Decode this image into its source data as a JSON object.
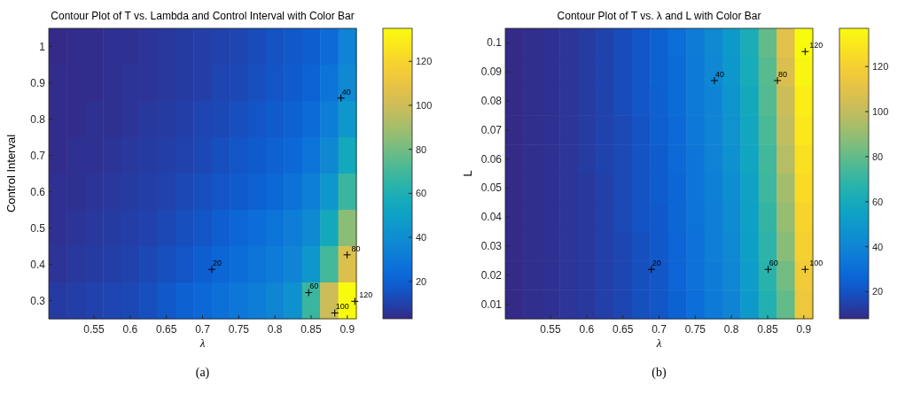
{
  "chart_data": [
    {
      "type": "heatmap",
      "title": "Contour Plot of T vs. Lambda and Control Interval with Color Bar",
      "xlabel": "λ",
      "ylabel": "Control Interval",
      "categories": [
        null,
        null,
        "0.55",
        null,
        "0.6",
        null,
        "0.65",
        null,
        "0.7",
        null,
        "0.75",
        null,
        "0.8",
        null,
        "0.85",
        null,
        "0.9"
      ],
      "y_categories": [
        "1",
        "0.9",
        "0.8",
        "0.7",
        "0.6",
        "0.5",
        "0.4",
        "0.3"
      ],
      "cells": [
        [
          3,
          4,
          4,
          5,
          5,
          6,
          7,
          8,
          9,
          10,
          11,
          13,
          15,
          17,
          19,
          24,
          35
        ],
        [
          4,
          4,
          4,
          5,
          6,
          6,
          7,
          8,
          9,
          11,
          12,
          14,
          16,
          18,
          21,
          28,
          38
        ],
        [
          4,
          4,
          5,
          5,
          6,
          7,
          8,
          9,
          11,
          12,
          14,
          16,
          18,
          20,
          24,
          32,
          45
        ],
        [
          4,
          5,
          5,
          6,
          7,
          8,
          9,
          10,
          12,
          14,
          16,
          18,
          20,
          23,
          28,
          37,
          55
        ],
        [
          5,
          5,
          6,
          7,
          8,
          9,
          10,
          12,
          14,
          16,
          18,
          20,
          23,
          27,
          33,
          45,
          68
        ],
        [
          5,
          6,
          7,
          8,
          9,
          10,
          12,
          14,
          16,
          19,
          22,
          25,
          28,
          32,
          38,
          55,
          85
        ],
        [
          6,
          7,
          8,
          9,
          10,
          12,
          14,
          16,
          19,
          22,
          25,
          28,
          31,
          35,
          45,
          70,
          105
        ],
        [
          8,
          9,
          10,
          11,
          12,
          14,
          17,
          20,
          23,
          26,
          29,
          32,
          36,
          42,
          68,
          100,
          135
        ]
      ],
      "clim": [
        3,
        135
      ],
      "cticks": [
        20,
        40,
        60,
        80,
        100,
        120
      ],
      "annotations": [
        "20",
        "40",
        "60",
        "80",
        "100",
        "120",
        "(a)"
      ]
    },
    {
      "type": "heatmap",
      "title": "Contour Plot of T vs. λ and L with Color Bar",
      "xlabel": "λ",
      "ylabel": "L",
      "categories": [
        null,
        null,
        "0.55",
        null,
        "0.6",
        null,
        "0.65",
        null,
        "0.7",
        null,
        "0.75",
        null,
        "0.8",
        null,
        "0.85",
        null,
        "0.9"
      ],
      "y_categories": [
        "0.1",
        "0.09",
        "0.08",
        "0.07",
        "0.06",
        "0.05",
        "0.04",
        "0.03",
        "0.02",
        "0.01"
      ],
      "cells": [
        [
          8,
          9,
          10,
          11,
          13,
          15,
          18,
          21,
          25,
          30,
          36,
          42,
          50,
          62,
          80,
          110,
          137
        ],
        [
          8,
          9,
          10,
          11,
          13,
          15,
          18,
          21,
          25,
          29,
          35,
          41,
          49,
          61,
          78,
          107,
          135
        ],
        [
          8,
          9,
          10,
          11,
          13,
          15,
          18,
          21,
          24,
          29,
          35,
          40,
          48,
          59,
          77,
          103,
          132
        ],
        [
          8,
          9,
          10,
          11,
          13,
          15,
          17,
          20,
          24,
          28,
          34,
          40,
          47,
          58,
          75,
          100,
          130
        ],
        [
          8,
          9,
          10,
          11,
          13,
          15,
          17,
          20,
          23,
          28,
          33,
          39,
          46,
          57,
          73,
          97,
          127
        ],
        [
          8,
          9,
          10,
          11,
          12,
          14,
          17,
          20,
          23,
          27,
          33,
          38,
          44,
          55,
          72,
          93,
          125
        ],
        [
          8,
          9,
          10,
          11,
          12,
          14,
          17,
          20,
          22,
          27,
          32,
          37,
          43,
          54,
          70,
          90,
          122
        ],
        [
          8,
          9,
          10,
          11,
          12,
          14,
          16,
          19,
          22,
          26,
          31,
          37,
          42,
          53,
          68,
          87,
          120
        ],
        [
          8,
          9,
          10,
          11,
          12,
          14,
          16,
          19,
          21,
          26,
          31,
          36,
          41,
          52,
          67,
          83,
          117
        ],
        [
          8,
          9,
          10,
          11,
          12,
          14,
          16,
          19,
          21,
          25,
          30,
          35,
          40,
          50,
          65,
          80,
          115
        ]
      ],
      "clim": [
        8,
        137
      ],
      "cticks": [
        20,
        40,
        60,
        80,
        100,
        120
      ],
      "annotations": [
        "20",
        "40",
        "60",
        "80",
        "100",
        "120",
        "(b)"
      ]
    }
  ]
}
